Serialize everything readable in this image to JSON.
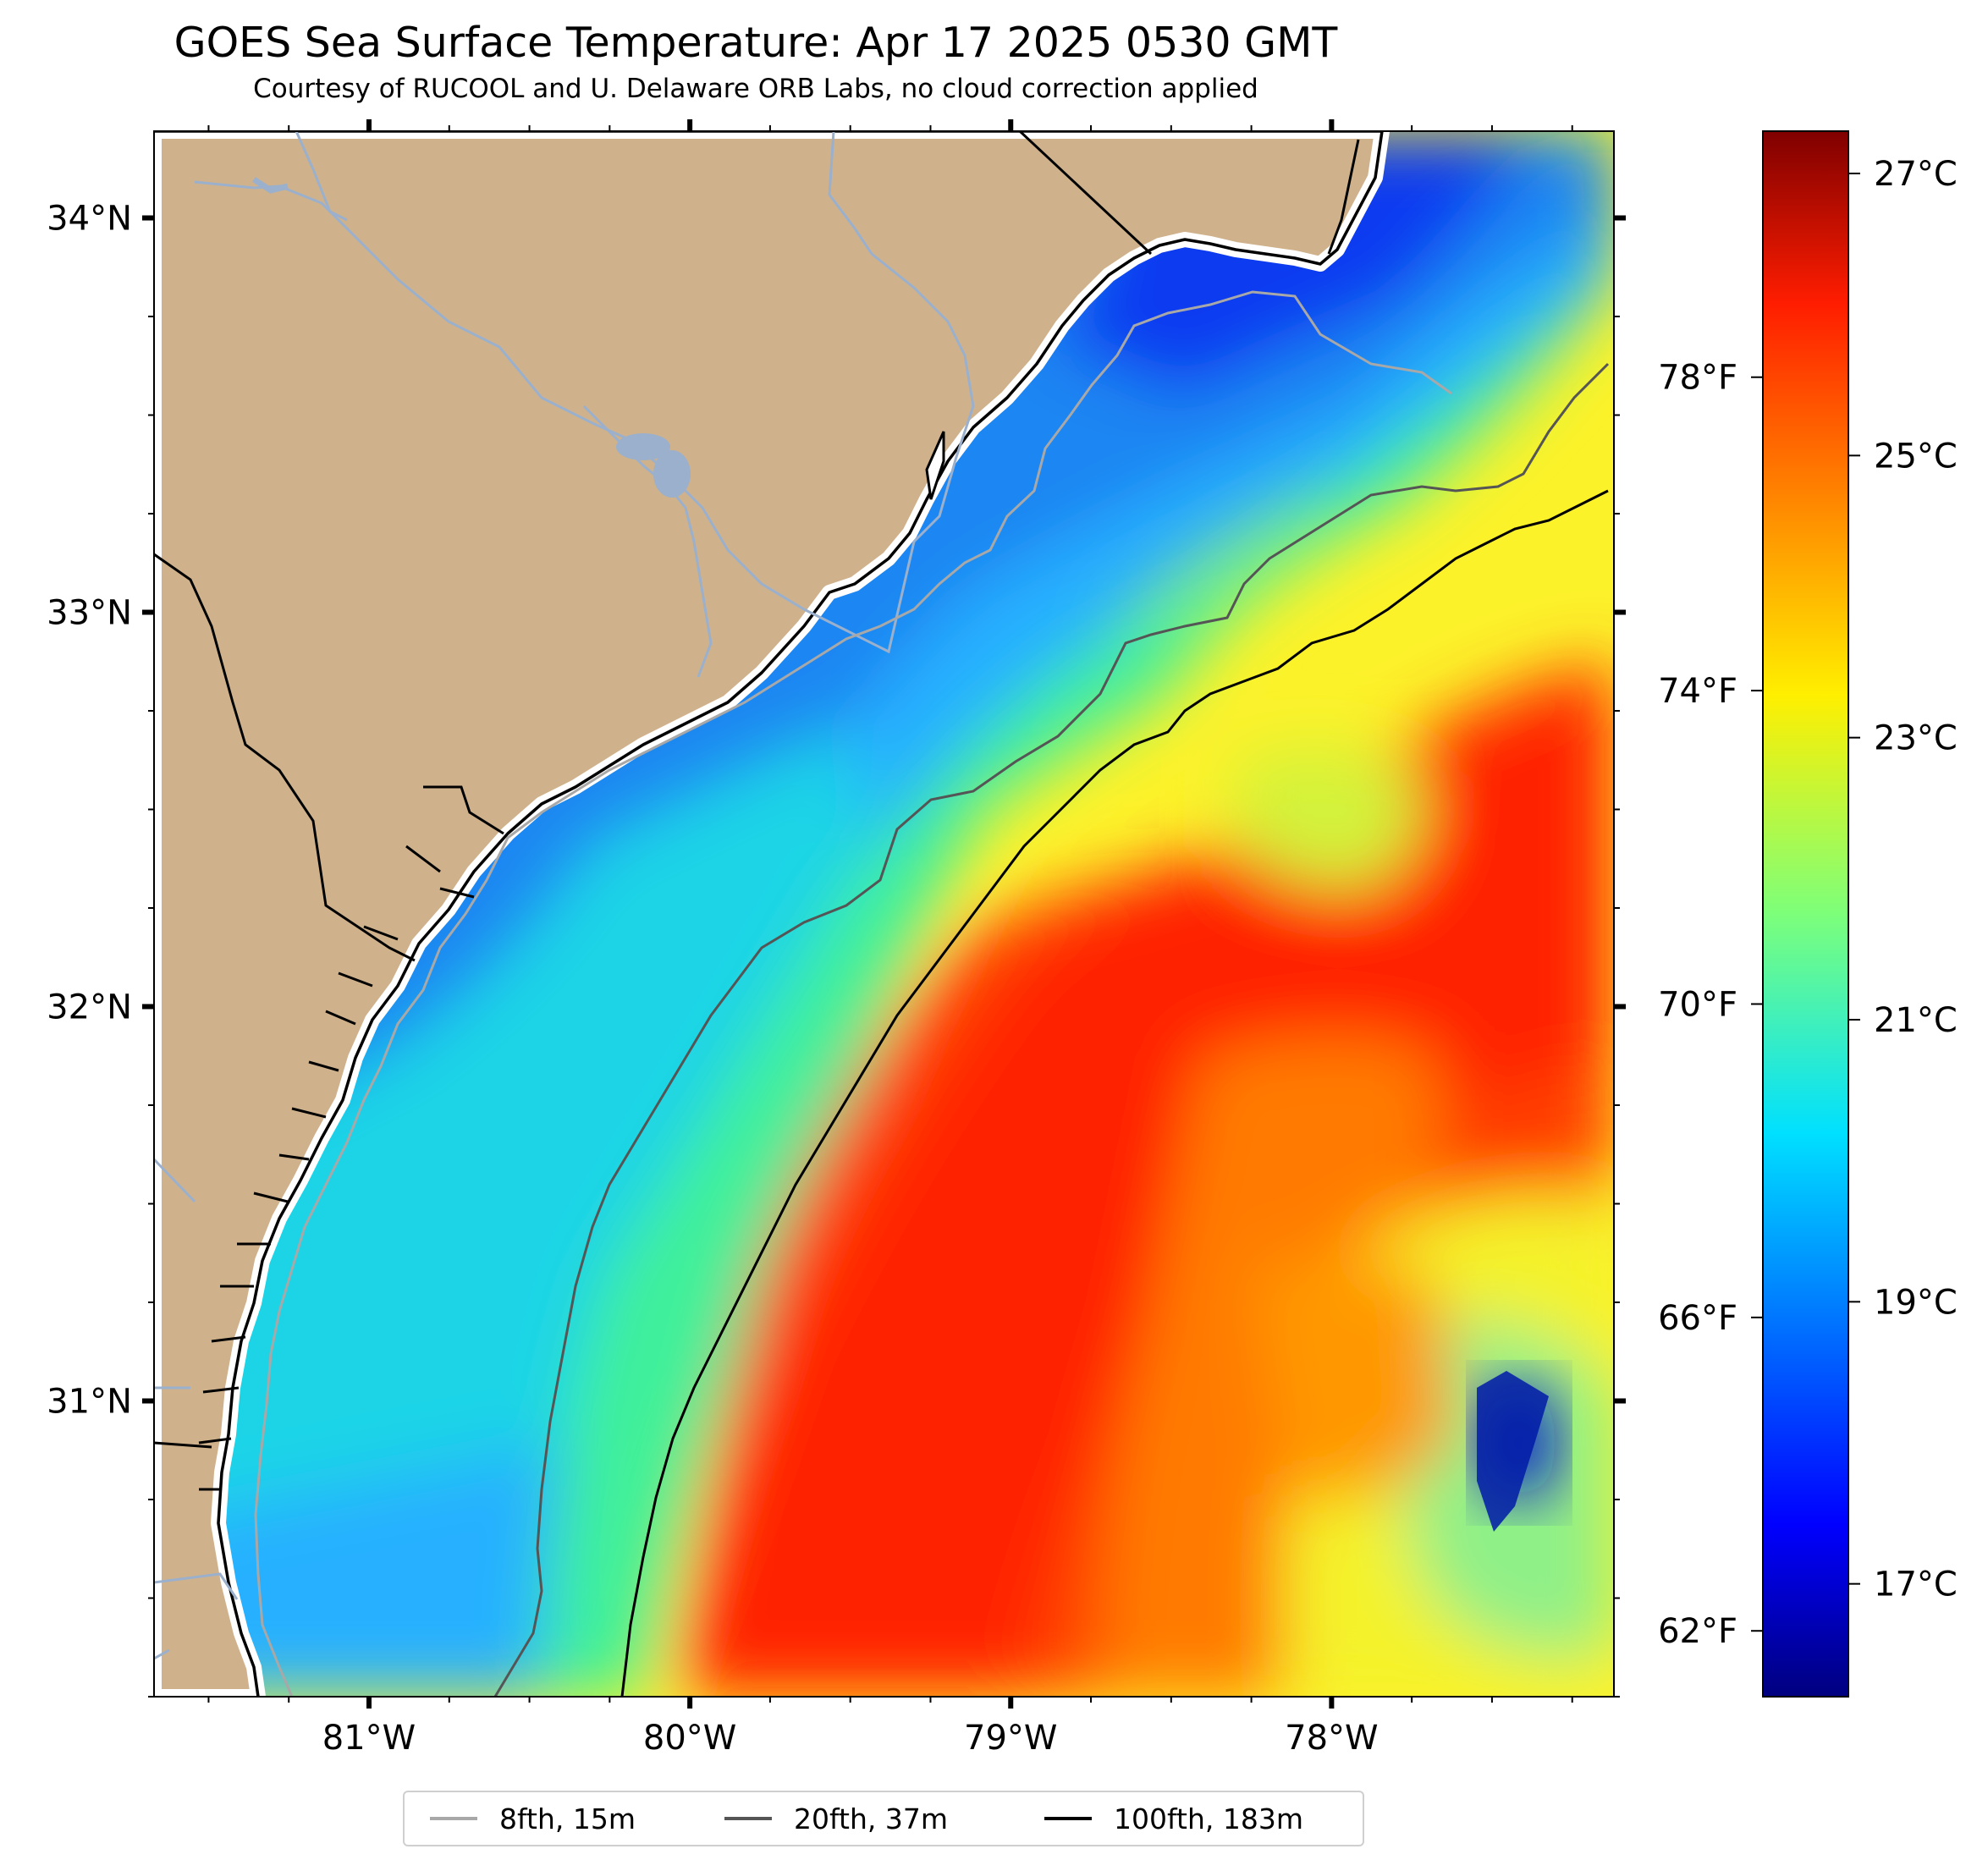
{
  "title": "GOES Sea Surface Temperature: Apr 17 2025 0530 GMT",
  "subtitle": "Courtesy of RUCOOL and U. Delaware ORB Labs, no cloud correction applied",
  "map": {
    "land_color": "#cfb28c",
    "coastline_color": "#000000",
    "river_color": "#9ab0cc",
    "lon_range": [
      -81.67,
      -77.12
    ],
    "lat_range": [
      30.25,
      34.22
    ],
    "lon_ticks": [
      {
        "value": -81,
        "label": "81°W"
      },
      {
        "value": -80,
        "label": "80°W"
      },
      {
        "value": -79,
        "label": "79°W"
      },
      {
        "value": -78,
        "label": "78°W"
      }
    ],
    "lat_ticks": [
      {
        "value": 34,
        "label": "34°N"
      },
      {
        "value": 33,
        "label": "33°N"
      },
      {
        "value": 32,
        "label": "32°N"
      },
      {
        "value": 31,
        "label": "31°N"
      }
    ],
    "sst_range_c": [
      16.2,
      27.3
    ],
    "sst_fields": [
      {
        "region": "nearshore shelf",
        "temp_c": 19.0
      },
      {
        "region": "inner shelf off Georgia",
        "temp_c": 21.0
      },
      {
        "region": "outer shelf",
        "temp_c": 22.5
      },
      {
        "region": "Gulf Stream core",
        "temp_c": 26.0
      },
      {
        "region": "offshore southeast",
        "temp_c": 23.5
      },
      {
        "region": "cold eddy near 77.5°W 30.7°N",
        "temp_c": 17.5
      }
    ]
  },
  "colorbar": {
    "colormap": "jet",
    "celsius_ticks": [
      {
        "value": 17,
        "label": "17°C"
      },
      {
        "value": 19,
        "label": "19°C"
      },
      {
        "value": 21,
        "label": "21°C"
      },
      {
        "value": 23,
        "label": "23°C"
      },
      {
        "value": 25,
        "label": "25°C"
      },
      {
        "value": 27,
        "label": "27°C"
      }
    ],
    "fahrenheit_ticks": [
      {
        "value": 62,
        "label": "62°F"
      },
      {
        "value": 66,
        "label": "66°F"
      },
      {
        "value": 70,
        "label": "70°F"
      },
      {
        "value": 74,
        "label": "74°F"
      },
      {
        "value": 78,
        "label": "78°F"
      }
    ]
  },
  "legend": {
    "items": [
      {
        "label": "8fth, 15m",
        "color": "#a8a8a8"
      },
      {
        "label": "20fth, 37m",
        "color": "#555555"
      },
      {
        "label": "100fth, 183m",
        "color": "#000000"
      }
    ]
  }
}
